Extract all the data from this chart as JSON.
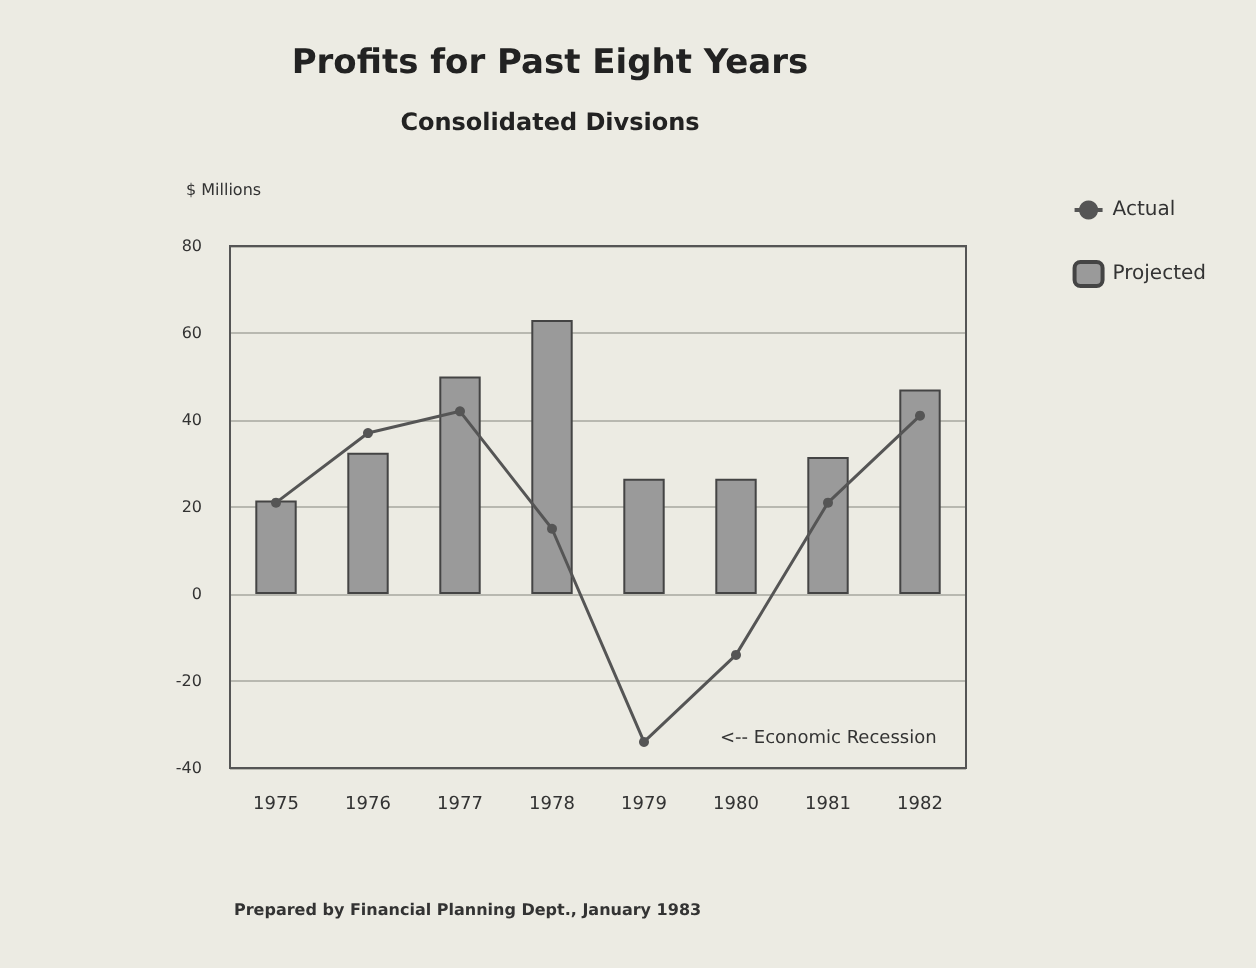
{
  "chart_data": {
    "type": "bar",
    "title": "Profits for Past Eight Years",
    "subtitle": "Consolidated Divsions",
    "ylabel": "$ Millions",
    "categories": [
      "1975",
      "1976",
      "1977",
      "1978",
      "1979",
      "1980",
      "1981",
      "1982"
    ],
    "series": [
      {
        "name": "Actual",
        "type": "line",
        "color": "#555555",
        "values": [
          21,
          37,
          42,
          15,
          -34,
          -14,
          21,
          41
        ]
      },
      {
        "name": "Projected",
        "color": "#9a9a9a",
        "values": [
          21.5,
          32.5,
          50,
          63,
          26.5,
          26.5,
          31.5,
          47
        ]
      }
    ],
    "ylim": [
      -40,
      80
    ],
    "yticks": [
      -40,
      -20,
      0,
      20,
      40,
      60,
      80
    ],
    "grid": "y",
    "legend": "top right",
    "marker": "circle",
    "annotations": [
      "<-- Economic Recession",
      "Prepared by Financial Planning Dept., January 1983"
    ]
  }
}
